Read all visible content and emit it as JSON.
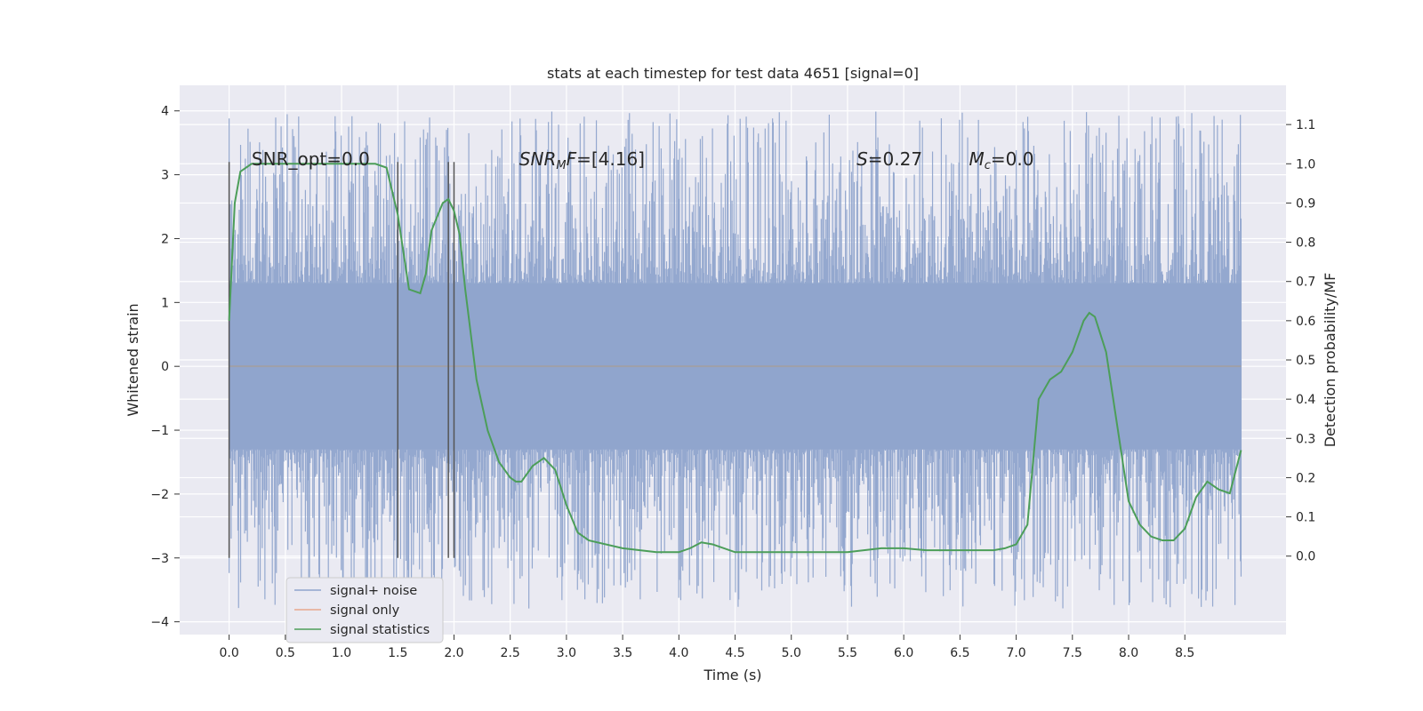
{
  "chart_data": {
    "type": "line",
    "title": "stats at each timestep for test data 4651 [signal=0]",
    "xlabel": "Time (s)",
    "ylabel": "Whitened strain",
    "ylabel_right": "Detection probability/MF",
    "xlim": [
      -0.44,
      9.4
    ],
    "ylim": [
      -4.2,
      4.4
    ],
    "ylim_right": [
      -0.2,
      1.2
    ],
    "xticks": [
      0.0,
      0.5,
      1.0,
      1.5,
      2.0,
      2.5,
      3.0,
      3.5,
      4.0,
      4.5,
      5.0,
      5.5,
      6.0,
      6.5,
      7.0,
      7.5,
      8.0,
      8.5
    ],
    "xtick_labels": [
      "0.0",
      "0.5",
      "1.0",
      "1.5",
      "2.0",
      "2.5",
      "3.0",
      "3.5",
      "4.0",
      "4.5",
      "5.0",
      "5.5",
      "6.0",
      "6.5",
      "7.0",
      "7.5",
      "8.0",
      "8.5"
    ],
    "yticks": [
      -4,
      -3,
      -2,
      -1,
      0,
      1,
      2,
      3,
      4
    ],
    "ytick_labels": [
      "−4",
      "−3",
      "−2",
      "−1",
      "0",
      "1",
      "2",
      "3",
      "4"
    ],
    "yticks_right": [
      0.0,
      0.1,
      0.2,
      0.3,
      0.4,
      0.5,
      0.6,
      0.7,
      0.8,
      0.9,
      1.0,
      1.1
    ],
    "ytick_labels_right": [
      "0.0",
      "0.1",
      "0.2",
      "0.3",
      "0.4",
      "0.5",
      "0.6",
      "0.7",
      "0.8",
      "0.9",
      "1.0",
      "1.1"
    ],
    "grid": true,
    "legend_position": "lower-left",
    "series": [
      {
        "name": "signal+ noise",
        "color": "#8fa4cc",
        "style": "dense noise band",
        "x_range": [
          0.0,
          9.0
        ],
        "core_band": [
          -1.3,
          1.3
        ],
        "outlier_range": [
          -3.8,
          4.0
        ]
      },
      {
        "name": "signal only",
        "color": "#e8a88c",
        "x": [
          0.0,
          9.0
        ],
        "y": [
          0.0,
          0.0
        ]
      },
      {
        "name": "signal statistics",
        "color": "#4c9e59",
        "axis": "right",
        "x": [
          0.0,
          0.05,
          0.1,
          0.2,
          0.3,
          0.5,
          0.8,
          1.0,
          1.3,
          1.4,
          1.5,
          1.6,
          1.7,
          1.75,
          1.8,
          1.9,
          1.95,
          2.0,
          2.05,
          2.1,
          2.2,
          2.3,
          2.4,
          2.5,
          2.55,
          2.6,
          2.7,
          2.8,
          2.9,
          3.0,
          3.1,
          3.2,
          3.5,
          3.8,
          4.0,
          4.1,
          4.2,
          4.3,
          4.5,
          5.0,
          5.5,
          5.8,
          6.0,
          6.2,
          6.5,
          6.8,
          6.9,
          7.0,
          7.1,
          7.2,
          7.3,
          7.4,
          7.5,
          7.6,
          7.65,
          7.7,
          7.8,
          7.9,
          8.0,
          8.1,
          8.2,
          8.3,
          8.4,
          8.5,
          8.6,
          8.7,
          8.8,
          8.9,
          9.0
        ],
        "y": [
          0.6,
          0.9,
          0.98,
          1.0,
          1.0,
          1.0,
          1.0,
          1.0,
          1.0,
          0.99,
          0.87,
          0.68,
          0.67,
          0.72,
          0.83,
          0.9,
          0.91,
          0.88,
          0.82,
          0.68,
          0.45,
          0.32,
          0.24,
          0.2,
          0.19,
          0.19,
          0.23,
          0.25,
          0.22,
          0.13,
          0.06,
          0.04,
          0.02,
          0.01,
          0.01,
          0.02,
          0.035,
          0.03,
          0.01,
          0.01,
          0.01,
          0.02,
          0.02,
          0.015,
          0.015,
          0.015,
          0.02,
          0.03,
          0.08,
          0.4,
          0.45,
          0.47,
          0.52,
          0.6,
          0.62,
          0.61,
          0.52,
          0.33,
          0.14,
          0.08,
          0.05,
          0.04,
          0.04,
          0.07,
          0.15,
          0.19,
          0.17,
          0.16,
          0.27
        ]
      }
    ],
    "vertical_markers_x": [
      0.0,
      1.5,
      1.95,
      2.0
    ],
    "vertical_marker_y_range": [
      -3.0,
      3.2
    ],
    "annotations": [
      {
        "x": 0.2,
        "y": 3.15,
        "text": "SNR_opt=0.0"
      },
      {
        "x": 2.58,
        "y": 3.15,
        "text": "F=[4.16]",
        "prefix": "SNR",
        "sub": "M"
      },
      {
        "x": 5.58,
        "y": 3.15,
        "text": "=0.27",
        "prefix": "S"
      },
      {
        "x": 6.58,
        "y": 3.15,
        "text": "=0.0",
        "prefix": "M",
        "sub": "c"
      }
    ]
  }
}
